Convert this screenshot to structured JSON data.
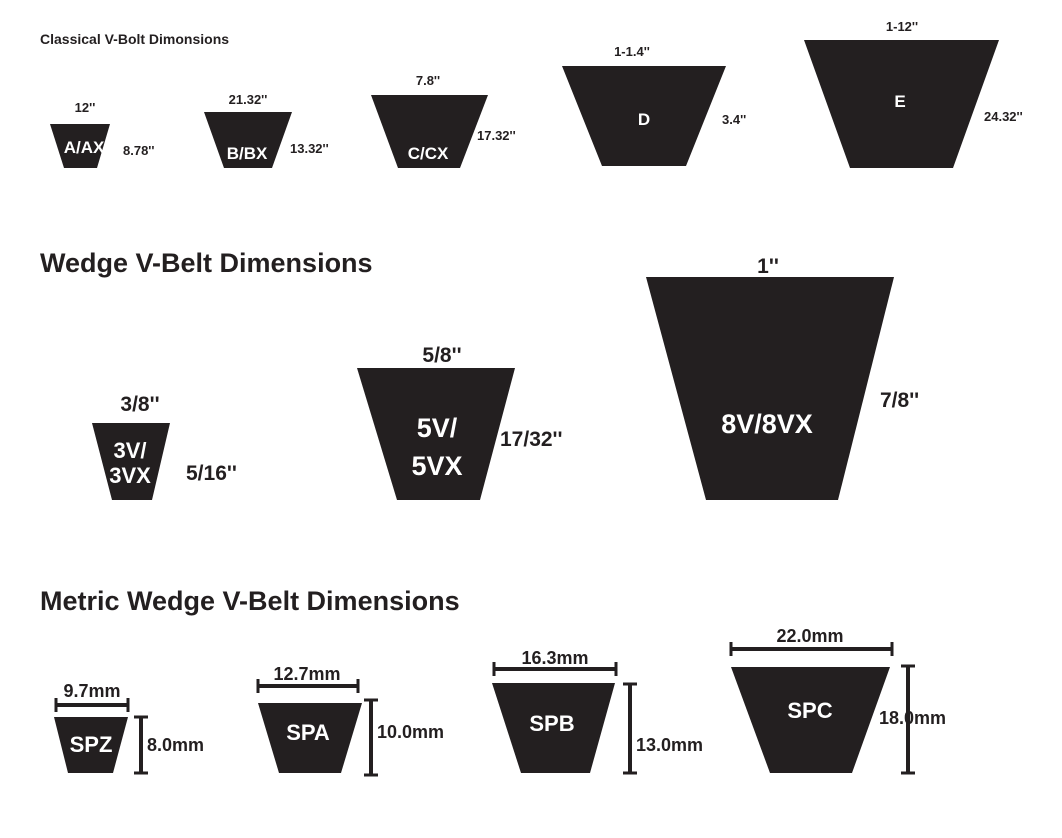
{
  "fill_color": "#231f20",
  "sections": [
    {
      "title": "Classical V-Bolt Dimonsions",
      "belts": [
        {
          "label": [
            "A/AX"
          ],
          "top": "12''",
          "side": "8.78''"
        },
        {
          "label": [
            "B/BX"
          ],
          "top": "21.32''",
          "side": "13.32''"
        },
        {
          "label": [
            "C/CX"
          ],
          "top": "7.8''",
          "side": "17.32''"
        },
        {
          "label": [
            "D"
          ],
          "top": "1-1.4''",
          "side": "3.4''"
        },
        {
          "label": [
            "E"
          ],
          "top": "1-12''",
          "side": "24.32''"
        }
      ]
    },
    {
      "title": "Wedge V-Belt Dimensions",
      "belts": [
        {
          "label": [
            "3V/",
            "3VX"
          ],
          "top": "3/8''",
          "side": "5/16''"
        },
        {
          "label": [
            "5V/",
            "5VX"
          ],
          "top": "5/8''",
          "side": "17/32''"
        },
        {
          "label": [
            "8V/8VX"
          ],
          "top": "1''",
          "side": "7/8''"
        }
      ]
    },
    {
      "title": "Metric Wedge V-Belt Dimensions",
      "belts": [
        {
          "label": [
            "SPZ"
          ],
          "top": "9.7mm",
          "side": "8.0mm"
        },
        {
          "label": [
            "SPA"
          ],
          "top": "12.7mm",
          "side": "10.0mm"
        },
        {
          "label": [
            "SPB"
          ],
          "top": "16.3mm",
          "side": "13.0mm"
        },
        {
          "label": [
            "SPC"
          ],
          "top": "22.0mm",
          "side": "18.0mm"
        }
      ]
    }
  ]
}
